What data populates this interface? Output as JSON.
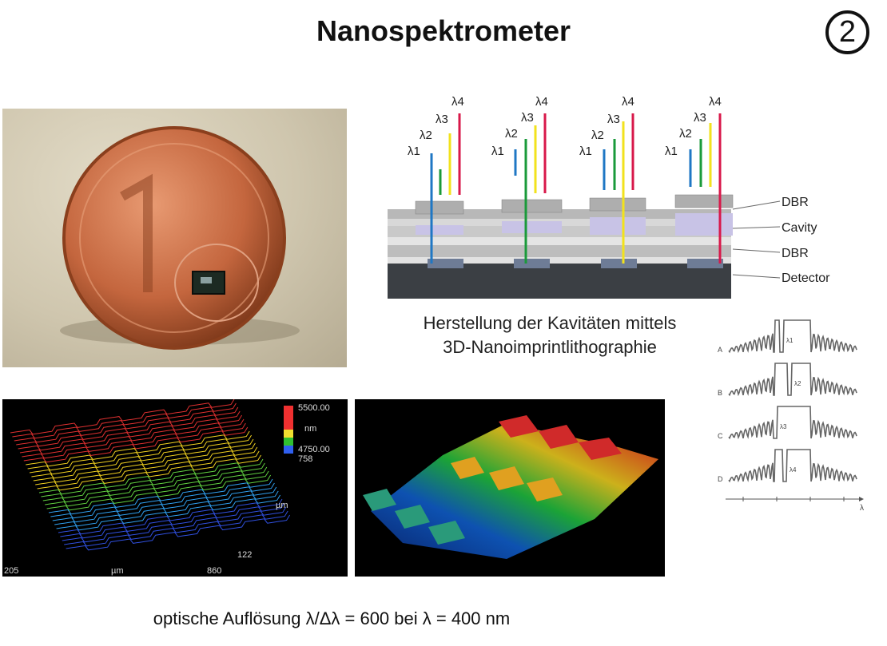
{
  "slide": {
    "title": "Nanospektrometer",
    "number": "2",
    "caption_line1": "Herstellung der Kavitäten mittels",
    "caption_line2": "3D-Nanoimprintlithographie",
    "footer": "optische Auflösung λ/Δλ = 600 bei λ = 400 nm"
  },
  "layer_diagram": {
    "labels": [
      "DBR",
      "Cavity",
      "DBR",
      "Detector"
    ],
    "wavelength_labels": [
      "λ1",
      "λ2",
      "λ3",
      "λ4"
    ],
    "colors": {
      "l1": "#1f77c4",
      "l2": "#1a9a3a",
      "l3": "#f2e21c",
      "l4": "#d8184a"
    }
  },
  "spectra": {
    "rows": [
      "A",
      "B",
      "C",
      "D"
    ],
    "peak_labels": [
      "λ1",
      "λ2",
      "λ3",
      "λ4"
    ],
    "axis_label": "λ"
  },
  "profilometer": {
    "scale_top": "5500.00",
    "scale_unit": "nm",
    "scale_bottom": "4750.00",
    "y_max": "758",
    "y_unit": "µm",
    "y_min": "122",
    "x_min": "205",
    "x_unit": "µm",
    "x_max": "860"
  }
}
